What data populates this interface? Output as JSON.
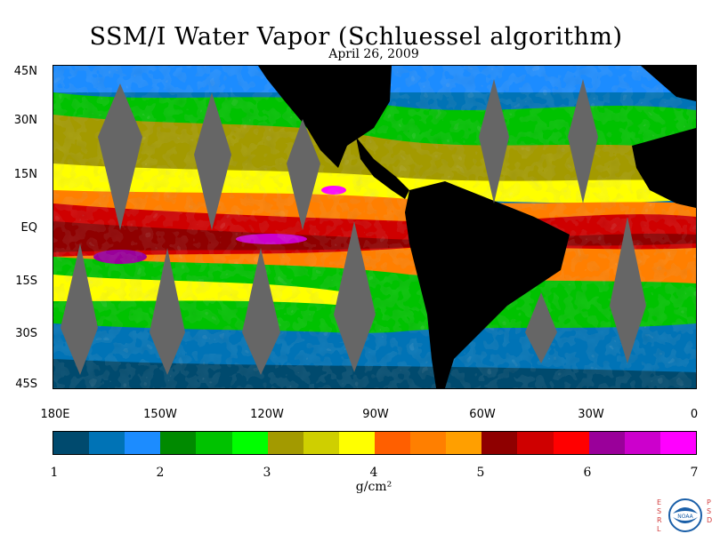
{
  "title": "SSM/I Water Vapor (Schluessel algorithm)",
  "date": "April 26, 2009",
  "lat_labels": [
    "45N",
    "30N",
    "15N",
    "EQ",
    "15S",
    "30S",
    "45S"
  ],
  "lon_labels": [
    "180E",
    "150W",
    "120W",
    "90W",
    "60W",
    "30W",
    "0"
  ],
  "colorbar": {
    "colors": [
      "#004a6e",
      "#0073b6",
      "#1c8cff",
      "#008a00",
      "#00c200",
      "#00ff00",
      "#a39a00",
      "#cfcf00",
      "#ffff00",
      "#ff5f00",
      "#ff7f00",
      "#ff9f00",
      "#8f0000",
      "#cf0000",
      "#ff0000",
      "#9a009a",
      "#cc00cc",
      "#ff00ff"
    ],
    "ticks": [
      "1",
      "2",
      "3",
      "4",
      "5",
      "6",
      "7"
    ],
    "units": "g/cm²"
  },
  "logo": {
    "left_text": "ESRL",
    "right_text": "PSD",
    "center_text": "NOAA",
    "color": "#d23c3c"
  },
  "map": {
    "land_color": "#000000",
    "no_data_color": "#666666"
  }
}
